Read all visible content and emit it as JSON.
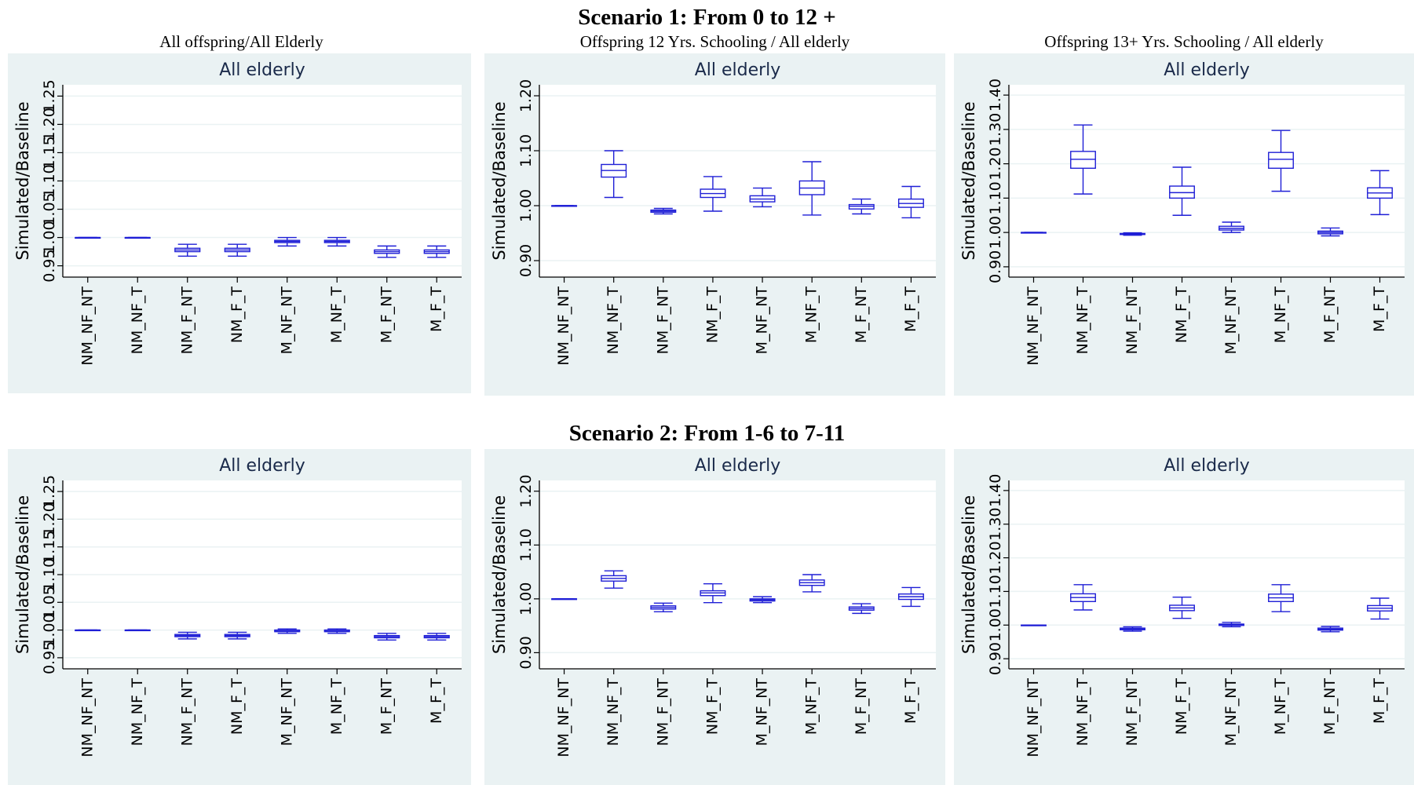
{
  "scenarios": [
    {
      "title": "Scenario 1: From 0 to 12 +",
      "panel_subtitles": [
        "All offspring/All Elderly",
        "Offspring 12 Yrs. Schooling / All elderly",
        "Offspring 13+ Yrs. Schooling / All elderly"
      ]
    },
    {
      "title": "Scenario 2: From 1-6 to 7-11",
      "panel_subtitles": [
        "",
        "",
        ""
      ]
    }
  ],
  "colors": {
    "panel_bg": "#eaf2f3",
    "plot_bg": "#ffffff",
    "box_stroke": "#1f1fd6",
    "grid": "#eaf2f3",
    "axis": "#000000"
  },
  "chart_data": [
    {
      "type": "box",
      "title": "All elderly",
      "ylabel": "Simulated/Baseline",
      "ylim": [
        0.93,
        1.27
      ],
      "yticks": [
        0.95,
        1.0,
        1.05,
        1.1,
        1.15,
        1.2,
        1.25
      ],
      "yticklabels": [
        "0.95",
        "1.00",
        "1.05",
        "1.10",
        "1.15",
        "1.20",
        "1.25"
      ],
      "categories": [
        "NM_NF_NT",
        "NM_NF_T",
        "NM_F_NT",
        "NM_F_T",
        "M_NF_NT",
        "M_NF_T",
        "M_F_NT",
        "M_F_T"
      ],
      "boxes": [
        {
          "whislo": 1.0,
          "q1": 1.0,
          "med": 1.0,
          "q3": 1.0,
          "whishi": 1.0
        },
        {
          "whislo": 1.0,
          "q1": 1.0,
          "med": 1.0,
          "q3": 1.0,
          "whishi": 1.0
        },
        {
          "whislo": 0.967,
          "q1": 0.975,
          "med": 0.978,
          "q3": 0.981,
          "whishi": 0.988
        },
        {
          "whislo": 0.967,
          "q1": 0.975,
          "med": 0.978,
          "q3": 0.981,
          "whishi": 0.988
        },
        {
          "whislo": 0.985,
          "q1": 0.991,
          "med": 0.993,
          "q3": 0.995,
          "whishi": 1.0
        },
        {
          "whislo": 0.985,
          "q1": 0.991,
          "med": 0.993,
          "q3": 0.995,
          "whishi": 1.0
        },
        {
          "whislo": 0.965,
          "q1": 0.972,
          "med": 0.975,
          "q3": 0.978,
          "whishi": 0.985
        },
        {
          "whislo": 0.965,
          "q1": 0.972,
          "med": 0.975,
          "q3": 0.978,
          "whishi": 0.985
        }
      ]
    },
    {
      "type": "box",
      "title": "All elderly",
      "ylabel": "Simulated/Baseline",
      "ylim": [
        0.87,
        1.22
      ],
      "yticks": [
        0.9,
        1.0,
        1.1,
        1.2
      ],
      "yticklabels": [
        "0.90",
        "1.00",
        "1.10",
        "1.20"
      ],
      "categories": [
        "NM_NF_NT",
        "NM_NF_T",
        "NM_F_NT",
        "NM_F_T",
        "M_NF_NT",
        "M_NF_T",
        "M_F_NT",
        "M_F_T"
      ],
      "boxes": [
        {
          "whislo": 1.0,
          "q1": 1.0,
          "med": 1.0,
          "q3": 1.0,
          "whishi": 1.0
        },
        {
          "whislo": 1.015,
          "q1": 1.052,
          "med": 1.064,
          "q3": 1.075,
          "whishi": 1.1
        },
        {
          "whislo": 0.985,
          "q1": 0.988,
          "med": 0.99,
          "q3": 0.992,
          "whishi": 0.995
        },
        {
          "whislo": 0.99,
          "q1": 1.015,
          "med": 1.022,
          "q3": 1.03,
          "whishi": 1.053
        },
        {
          "whislo": 0.998,
          "q1": 1.007,
          "med": 1.012,
          "q3": 1.018,
          "whishi": 1.032
        },
        {
          "whislo": 0.983,
          "q1": 1.02,
          "med": 1.032,
          "q3": 1.045,
          "whishi": 1.08
        },
        {
          "whislo": 0.985,
          "q1": 0.994,
          "med": 0.999,
          "q3": 1.002,
          "whishi": 1.012
        },
        {
          "whislo": 0.978,
          "q1": 0.997,
          "med": 1.004,
          "q3": 1.012,
          "whishi": 1.035
        }
      ]
    },
    {
      "type": "box",
      "title": "All elderly",
      "ylabel": "Simulated/Baseline",
      "ylim": [
        0.87,
        1.43
      ],
      "yticks": [
        0.9,
        1.0,
        1.1,
        1.2,
        1.3,
        1.4
      ],
      "yticklabels": [
        "0.90",
        "1.00",
        "1.10",
        "1.20",
        "1.30",
        "1.40"
      ],
      "categories": [
        "NM_NF_NT",
        "NM_NF_T",
        "NM_F_NT",
        "NM_F_T",
        "M_NF_NT",
        "M_NF_T",
        "M_F_NT",
        "M_F_T"
      ],
      "boxes": [
        {
          "whislo": 1.0,
          "q1": 1.0,
          "med": 1.0,
          "q3": 1.0,
          "whishi": 1.0
        },
        {
          "whislo": 1.112,
          "q1": 1.187,
          "med": 1.213,
          "q3": 1.236,
          "whishi": 1.313
        },
        {
          "whislo": 0.992,
          "q1": 0.994,
          "med": 0.995,
          "q3": 0.997,
          "whishi": 0.999
        },
        {
          "whislo": 1.05,
          "q1": 1.1,
          "med": 1.116,
          "q3": 1.135,
          "whishi": 1.19
        },
        {
          "whislo": 1.0,
          "q1": 1.007,
          "med": 1.012,
          "q3": 1.018,
          "whishi": 1.03
        },
        {
          "whislo": 1.12,
          "q1": 1.187,
          "med": 1.213,
          "q3": 1.233,
          "whishi": 1.297
        },
        {
          "whislo": 0.99,
          "q1": 0.996,
          "med": 1.0,
          "q3": 1.004,
          "whishi": 1.013
        },
        {
          "whislo": 1.052,
          "q1": 1.1,
          "med": 1.115,
          "q3": 1.13,
          "whishi": 1.18
        }
      ]
    },
    {
      "type": "box",
      "title": "All elderly",
      "ylabel": "Simulated/Baseline",
      "ylim": [
        0.93,
        1.27
      ],
      "yticks": [
        0.95,
        1.0,
        1.05,
        1.1,
        1.15,
        1.2,
        1.25
      ],
      "yticklabels": [
        "0.95",
        "1.00",
        "1.05",
        "1.10",
        "1.15",
        "1.20",
        "1.25"
      ],
      "categories": [
        "NM_NF_NT",
        "NM_NF_T",
        "NM_F_NT",
        "NM_F_T",
        "M_NF_NT",
        "M_NF_T",
        "M_F_NT",
        "M_F_T"
      ],
      "boxes": [
        {
          "whislo": 1.0,
          "q1": 1.0,
          "med": 1.0,
          "q3": 1.0,
          "whishi": 1.0
        },
        {
          "whislo": 1.0,
          "q1": 1.0,
          "med": 1.0,
          "q3": 1.0,
          "whishi": 1.0
        },
        {
          "whislo": 0.984,
          "q1": 0.988,
          "med": 0.99,
          "q3": 0.992,
          "whishi": 0.996
        },
        {
          "whislo": 0.984,
          "q1": 0.988,
          "med": 0.99,
          "q3": 0.992,
          "whishi": 0.996
        },
        {
          "whislo": 0.994,
          "q1": 0.997,
          "med": 0.998,
          "q3": 1.0,
          "whishi": 1.002
        },
        {
          "whislo": 0.994,
          "q1": 0.997,
          "med": 0.998,
          "q3": 1.0,
          "whishi": 1.002
        },
        {
          "whislo": 0.982,
          "q1": 0.986,
          "med": 0.988,
          "q3": 0.99,
          "whishi": 0.994
        },
        {
          "whislo": 0.982,
          "q1": 0.986,
          "med": 0.988,
          "q3": 0.99,
          "whishi": 0.994
        }
      ]
    },
    {
      "type": "box",
      "title": "All elderly",
      "ylabel": "Simulated/Baseline",
      "ylim": [
        0.87,
        1.22
      ],
      "yticks": [
        0.9,
        1.0,
        1.1,
        1.2
      ],
      "yticklabels": [
        "0.90",
        "1.00",
        "1.10",
        "1.20"
      ],
      "categories": [
        "NM_NF_NT",
        "NM_NF_T",
        "NM_F_NT",
        "NM_F_T",
        "M_NF_NT",
        "M_NF_T",
        "M_F_NT",
        "M_F_T"
      ],
      "boxes": [
        {
          "whislo": 1.0,
          "q1": 1.0,
          "med": 1.0,
          "q3": 1.0,
          "whishi": 1.0
        },
        {
          "whislo": 1.02,
          "q1": 1.033,
          "med": 1.038,
          "q3": 1.043,
          "whishi": 1.052
        },
        {
          "whislo": 0.976,
          "q1": 0.981,
          "med": 0.984,
          "q3": 0.987,
          "whishi": 0.992
        },
        {
          "whislo": 0.993,
          "q1": 1.006,
          "med": 1.011,
          "q3": 1.015,
          "whishi": 1.028
        },
        {
          "whislo": 0.993,
          "q1": 0.996,
          "med": 0.998,
          "q3": 1.0,
          "whishi": 1.004
        },
        {
          "whislo": 1.013,
          "q1": 1.025,
          "med": 1.03,
          "q3": 1.035,
          "whishi": 1.045
        },
        {
          "whislo": 0.973,
          "q1": 0.979,
          "med": 0.982,
          "q3": 0.985,
          "whishi": 0.991
        },
        {
          "whislo": 0.986,
          "q1": 0.999,
          "med": 1.004,
          "q3": 1.009,
          "whishi": 1.021
        }
      ]
    },
    {
      "type": "box",
      "title": "All elderly",
      "ylabel": "Simulated/Baseline",
      "ylim": [
        0.87,
        1.43
      ],
      "yticks": [
        0.9,
        1.0,
        1.1,
        1.2,
        1.3,
        1.4
      ],
      "yticklabels": [
        "0.90",
        "1.00",
        "1.10",
        "1.20",
        "1.30",
        "1.40"
      ],
      "categories": [
        "NM_NF_NT",
        "NM_NF_T",
        "NM_F_NT",
        "NM_F_T",
        "M_NF_NT",
        "M_NF_T",
        "M_F_NT",
        "M_F_T"
      ],
      "boxes": [
        {
          "whislo": 1.0,
          "q1": 1.0,
          "med": 1.0,
          "q3": 1.0,
          "whishi": 1.0
        },
        {
          "whislo": 1.045,
          "q1": 1.07,
          "med": 1.082,
          "q3": 1.093,
          "whishi": 1.12
        },
        {
          "whislo": 0.982,
          "q1": 0.986,
          "med": 0.989,
          "q3": 0.991,
          "whishi": 0.995
        },
        {
          "whislo": 1.02,
          "q1": 1.043,
          "med": 1.051,
          "q3": 1.059,
          "whishi": 1.083
        },
        {
          "whislo": 0.995,
          "q1": 0.999,
          "med": 1.001,
          "q3": 1.003,
          "whishi": 1.008
        },
        {
          "whislo": 1.04,
          "q1": 1.07,
          "med": 1.081,
          "q3": 1.092,
          "whishi": 1.12
        },
        {
          "whislo": 0.98,
          "q1": 0.985,
          "med": 0.988,
          "q3": 0.991,
          "whishi": 0.996
        },
        {
          "whislo": 1.018,
          "q1": 1.042,
          "med": 1.05,
          "q3": 1.058,
          "whishi": 1.08
        }
      ]
    }
  ]
}
